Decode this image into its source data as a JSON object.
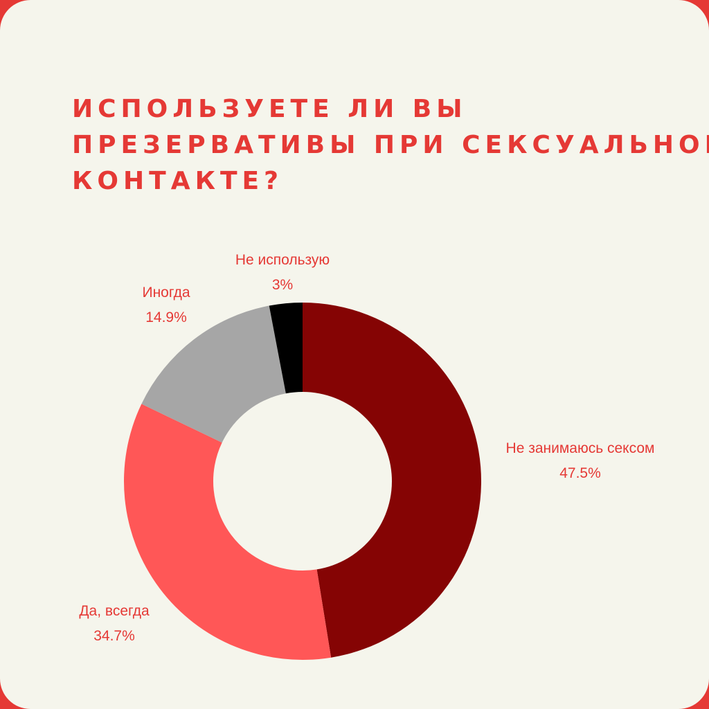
{
  "title_lines": [
    "Используете ли вы",
    "презервативы при сексуальном",
    "контакте?"
  ],
  "colors": {
    "frame": "#e53935",
    "background": "#f5f5ec",
    "title": "#e53935",
    "labels": "#e53935"
  },
  "chart_data": {
    "type": "pie",
    "style": "donut",
    "title": "Используете ли вы презервативы при сексуальном контакте?",
    "legend": "none",
    "slices": [
      {
        "label": "Не занимаюсь сексом",
        "value": 47.5,
        "display": "47.5%",
        "color": "#850404"
      },
      {
        "label": "Да, всегда",
        "value": 34.7,
        "display": "34.7%",
        "color": "#ff5757"
      },
      {
        "label": "Иногда",
        "value": 14.9,
        "display": "14.9%",
        "color": "#a6a6a6"
      },
      {
        "label": "Не использую",
        "value": 3,
        "display": "3%",
        "color": "#000000"
      }
    ]
  }
}
